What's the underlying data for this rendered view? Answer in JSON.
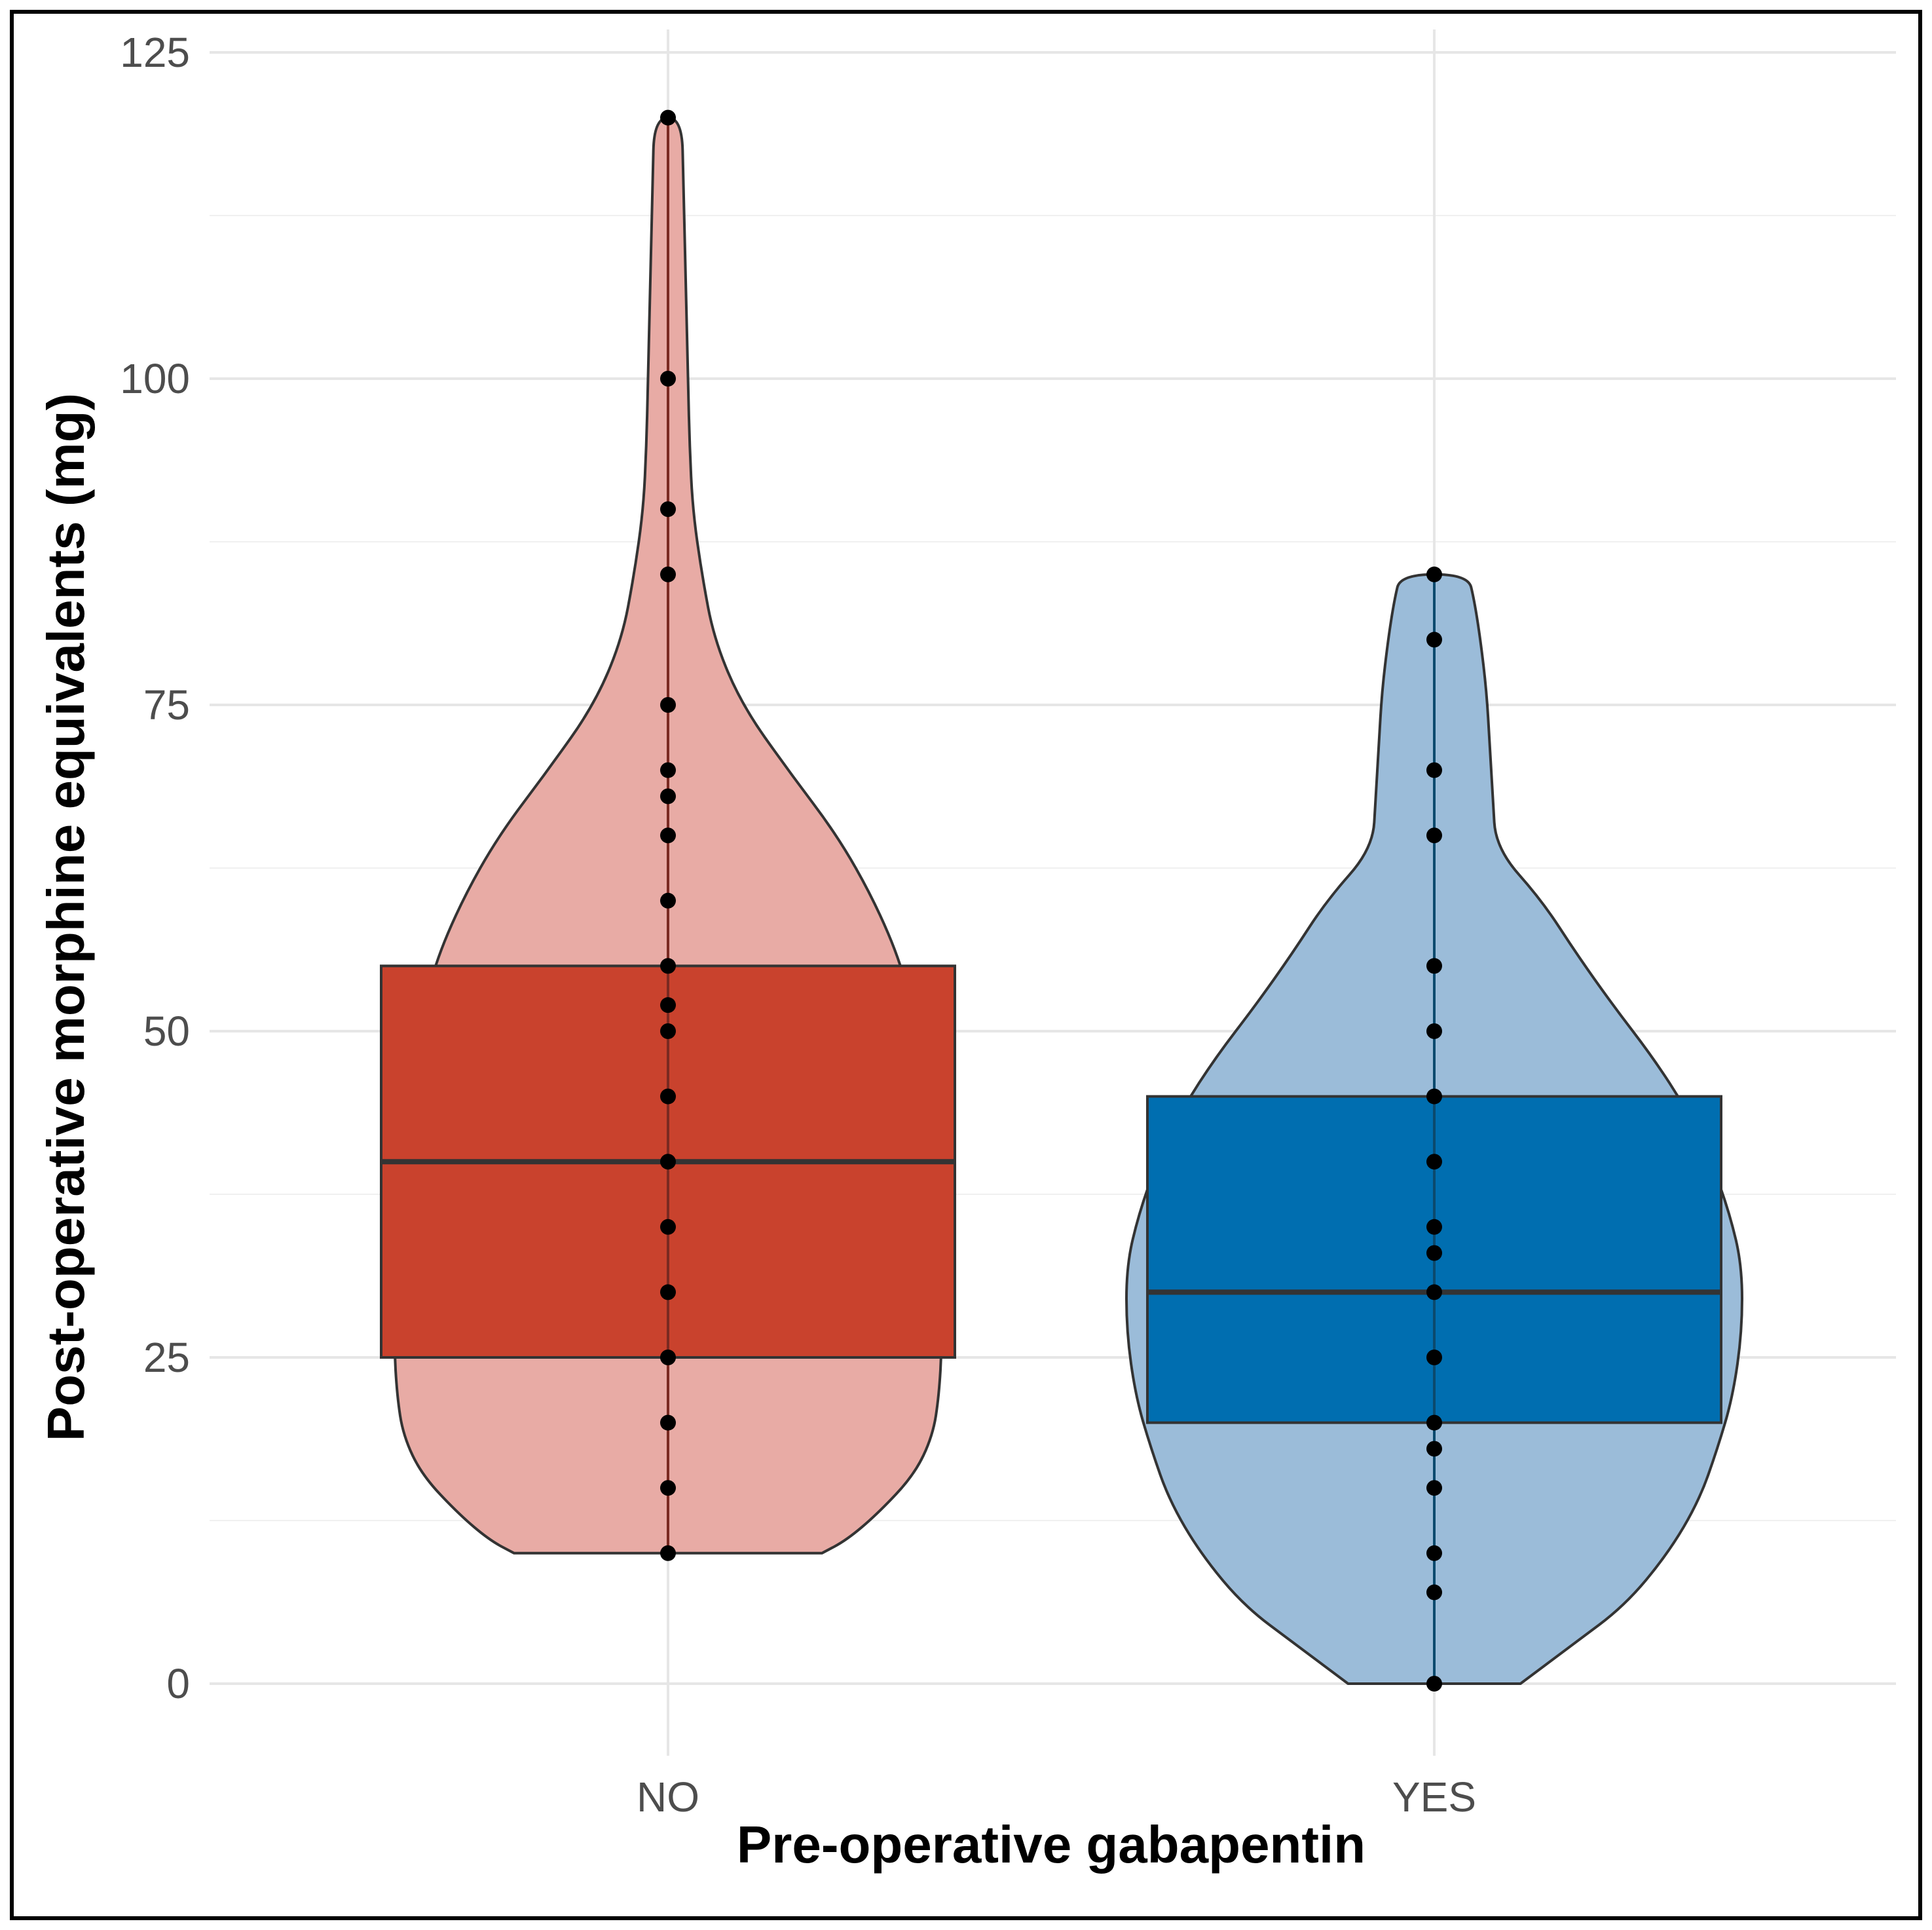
{
  "chart_data": {
    "type": "violin",
    "xlabel": "Pre-operative gabapentin",
    "ylabel": "Post-operative morphine equivalents (mg)",
    "categories": [
      "NO",
      "YES"
    ],
    "ylim": [
      -6,
      125
    ],
    "yticks": [
      0,
      25,
      50,
      75,
      100,
      125
    ],
    "yticks_minor": [
      12.5,
      37.5,
      62.5,
      87.5,
      112.5
    ],
    "grid": true,
    "legend": "none",
    "groups": [
      {
        "category": "NO",
        "violin_color": "#e8aba5",
        "box_color": "#c9422d",
        "box": {
          "q1": 25,
          "median": 40,
          "q3": 55
        },
        "points": [
          10,
          15,
          20,
          25,
          30,
          35,
          40,
          45,
          50,
          52,
          55,
          60,
          65,
          68,
          70,
          75,
          85,
          90,
          100,
          120
        ],
        "density": [
          [
            10,
            0.5
          ],
          [
            11,
            0.58
          ],
          [
            13,
            0.68
          ],
          [
            16,
            0.8
          ],
          [
            19,
            0.86
          ],
          [
            22,
            0.88
          ],
          [
            26,
            0.89
          ],
          [
            30,
            0.88
          ],
          [
            35,
            0.86
          ],
          [
            40,
            0.84
          ],
          [
            45,
            0.83
          ],
          [
            50,
            0.81
          ],
          [
            55,
            0.76
          ],
          [
            60,
            0.67
          ],
          [
            65,
            0.55
          ],
          [
            70,
            0.39
          ],
          [
            75,
            0.24
          ],
          [
            80,
            0.15
          ],
          [
            85,
            0.11
          ],
          [
            90,
            0.08
          ],
          [
            95,
            0.07
          ],
          [
            100,
            0.065
          ],
          [
            105,
            0.06
          ],
          [
            110,
            0.055
          ],
          [
            115,
            0.05
          ],
          [
            120,
            0.045
          ]
        ]
      },
      {
        "category": "YES",
        "violin_color": "#9bbcd9",
        "box_color": "#006eb0",
        "box": {
          "q1": 20,
          "median": 30,
          "q3": 45
        },
        "points": [
          0,
          7,
          10,
          15,
          18,
          20,
          25,
          30,
          33,
          35,
          40,
          45,
          50,
          55,
          65,
          70,
          80,
          85
        ],
        "density": [
          [
            0,
            0.28
          ],
          [
            3,
            0.45
          ],
          [
            6,
            0.62
          ],
          [
            10,
            0.76
          ],
          [
            14,
            0.86
          ],
          [
            18,
            0.92
          ],
          [
            22,
            0.97
          ],
          [
            27,
            1.0
          ],
          [
            32,
            1.0
          ],
          [
            36,
            0.96
          ],
          [
            40,
            0.9
          ],
          [
            44,
            0.82
          ],
          [
            48,
            0.71
          ],
          [
            52,
            0.58
          ],
          [
            56,
            0.46
          ],
          [
            60,
            0.35
          ],
          [
            64,
            0.2
          ],
          [
            68,
            0.19
          ],
          [
            72,
            0.18
          ],
          [
            76,
            0.17
          ],
          [
            80,
            0.15
          ],
          [
            83,
            0.13
          ],
          [
            85,
            0.11
          ]
        ]
      }
    ]
  }
}
